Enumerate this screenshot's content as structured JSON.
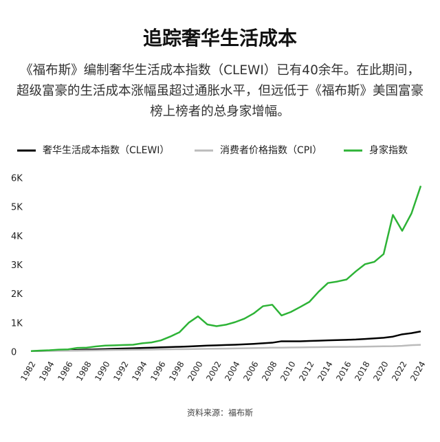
{
  "chart_data": {
    "type": "line",
    "title": "追踪奢华生活成本",
    "subtitle": "《福布斯》编制奢华生活成本指数（CLEWI）已有40余年。在此期间，超级富豪的生活成本涨幅虽超过通胀水平，但远低于《福布斯》美国富豪榜上榜者的总身家增幅。",
    "source": "资料来源：福布斯",
    "x": [
      1982,
      1983,
      1984,
      1985,
      1986,
      1987,
      1988,
      1989,
      1990,
      1991,
      1992,
      1993,
      1994,
      1995,
      1996,
      1997,
      1998,
      1999,
      2000,
      2001,
      2002,
      2003,
      2004,
      2005,
      2006,
      2007,
      2008,
      2009,
      2010,
      2011,
      2012,
      2013,
      2014,
      2015,
      2016,
      2017,
      2018,
      2019,
      2020,
      2021,
      2022,
      2023,
      2024
    ],
    "series": [
      {
        "name": "奢华生活成本指数（CLEWI）",
        "color": "#000000",
        "values": [
          100,
          105,
          115,
          120,
          130,
          140,
          150,
          160,
          170,
          180,
          190,
          200,
          210,
          220,
          230,
          240,
          250,
          260,
          275,
          290,
          300,
          310,
          320,
          335,
          350,
          370,
          390,
          440,
          440,
          440,
          450,
          460,
          470,
          480,
          490,
          500,
          520,
          540,
          560,
          600,
          680,
          720,
          780
        ]
      },
      {
        "name": "消费者价格指数（CPI）",
        "color": "#bbbbbb",
        "values": [
          100,
          104,
          107,
          110,
          112,
          116,
          121,
          127,
          133,
          139,
          143,
          147,
          151,
          155,
          160,
          164,
          167,
          170,
          176,
          182,
          185,
          188,
          193,
          198,
          205,
          211,
          219,
          218,
          224,
          229,
          233,
          238,
          242,
          246,
          247,
          250,
          256,
          262,
          266,
          269,
          282,
          304,
          316
        ]
      },
      {
        "name": "身家指数",
        "color": "#2db336",
        "values": [
          100,
          120,
          130,
          150,
          160,
          210,
          220,
          260,
          290,
          300,
          310,
          320,
          370,
          400,
          470,
          600,
          750,
          1080,
          1300,
          1020,
          960,
          1010,
          1100,
          1220,
          1400,
          1650,
          1700,
          1330,
          1450,
          1620,
          1800,
          2150,
          2450,
          2500,
          2570,
          2850,
          3100,
          3180,
          3450,
          4800,
          4250,
          4850,
          5800
        ]
      }
    ],
    "xlim": [
      1982,
      2024
    ],
    "xticks": [
      1982,
      1984,
      1986,
      1988,
      1990,
      1992,
      1994,
      1996,
      1998,
      2000,
      2002,
      2004,
      2006,
      2008,
      2010,
      2012,
      2014,
      2016,
      2018,
      2020,
      2022,
      2024
    ],
    "ylim": [
      0,
      6000
    ],
    "yticks": [
      0,
      {
        "value": 1000,
        "label": "1K"
      },
      {
        "value": 2000,
        "label": "2K"
      },
      {
        "value": 3000,
        "label": "3K"
      },
      {
        "value": 4000,
        "label": "4K"
      },
      {
        "value": 5000,
        "label": "5K"
      },
      {
        "value": 6000,
        "label": "6K"
      }
    ],
    "grid": false
  }
}
